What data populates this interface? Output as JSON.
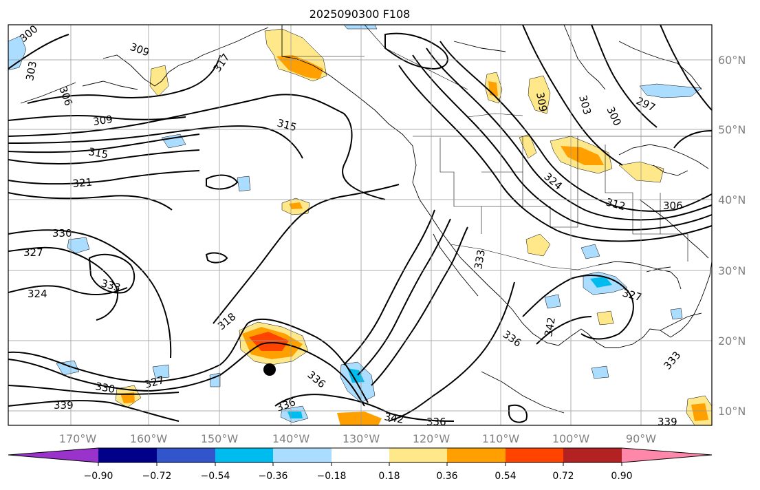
{
  "title": "2025090300 F108",
  "map": {
    "lon_ticks": [
      "170°W",
      "160°W",
      "150°W",
      "140°W",
      "130°W",
      "120°W",
      "110°W",
      "100°W",
      "90°W"
    ],
    "lat_ticks": [
      "60°N",
      "50°N",
      "40°N",
      "30°N",
      "20°N",
      "10°N"
    ],
    "contour_labels": [
      "300",
      "303",
      "306",
      "309",
      "309",
      "315",
      "315",
      "321",
      "330",
      "327",
      "333",
      "324",
      "318",
      "330",
      "327",
      "339",
      "336",
      "336",
      "342",
      "336",
      "333",
      "336",
      "342",
      "327",
      "333",
      "339",
      "309",
      "303",
      "300",
      "297",
      "306",
      "312",
      "324",
      "317"
    ],
    "storm_marker": "tropical-cyclone-center"
  },
  "colorbar": {
    "colors": [
      "#9933cc",
      "#000088",
      "#3355cc",
      "#00bbee",
      "#aaddff",
      "#ffffff",
      "#ffe88a",
      "#ffa000",
      "#ff4400",
      "#b22222",
      "#ff88aa"
    ],
    "tick_labels": [
      "−0.90",
      "−0.72",
      "−0.54",
      "−0.36",
      "−0.18",
      "0.18",
      "0.36",
      "0.54",
      "0.72",
      "0.90"
    ]
  }
}
